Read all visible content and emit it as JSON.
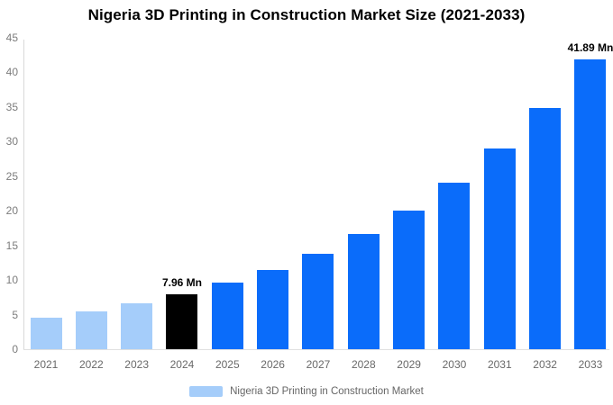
{
  "title": "Nigeria 3D Printing in Construction Market Size (2021-2033)",
  "chart_data": {
    "type": "bar",
    "title": "Nigeria 3D Printing in Construction Market Size (2021-2033)",
    "xlabel": "",
    "ylabel": "",
    "ylim": [
      0,
      45
    ],
    "yticks": [
      0,
      5,
      10,
      15,
      20,
      25,
      30,
      35,
      40,
      45
    ],
    "grid": false,
    "categories": [
      "2021",
      "2022",
      "2023",
      "2024",
      "2025",
      "2026",
      "2027",
      "2028",
      "2029",
      "2030",
      "2031",
      "2032",
      "2033"
    ],
    "values": [
      4.55,
      5.48,
      6.59,
      7.96,
      9.57,
      11.51,
      13.85,
      16.65,
      20.03,
      24.09,
      28.97,
      34.84,
      41.89
    ],
    "unit": "Mn",
    "value_labels": [
      "",
      "",
      "",
      "7.96 Mn",
      "",
      "",
      "",
      "",
      "",
      "",
      "",
      "",
      "41.89 Mn"
    ],
    "bar_roles": [
      "historical",
      "historical",
      "historical",
      "base_year",
      "forecast",
      "forecast",
      "forecast",
      "forecast",
      "forecast",
      "forecast",
      "forecast",
      "forecast",
      "forecast"
    ],
    "colors": {
      "historical": "#a5cdfa",
      "base_year": "#000000",
      "forecast": "#0a6cfa"
    },
    "legend": {
      "label": "Nigeria 3D Printing in Construction Market",
      "position": "bottom",
      "swatch_color": "#a5cdfa"
    }
  }
}
